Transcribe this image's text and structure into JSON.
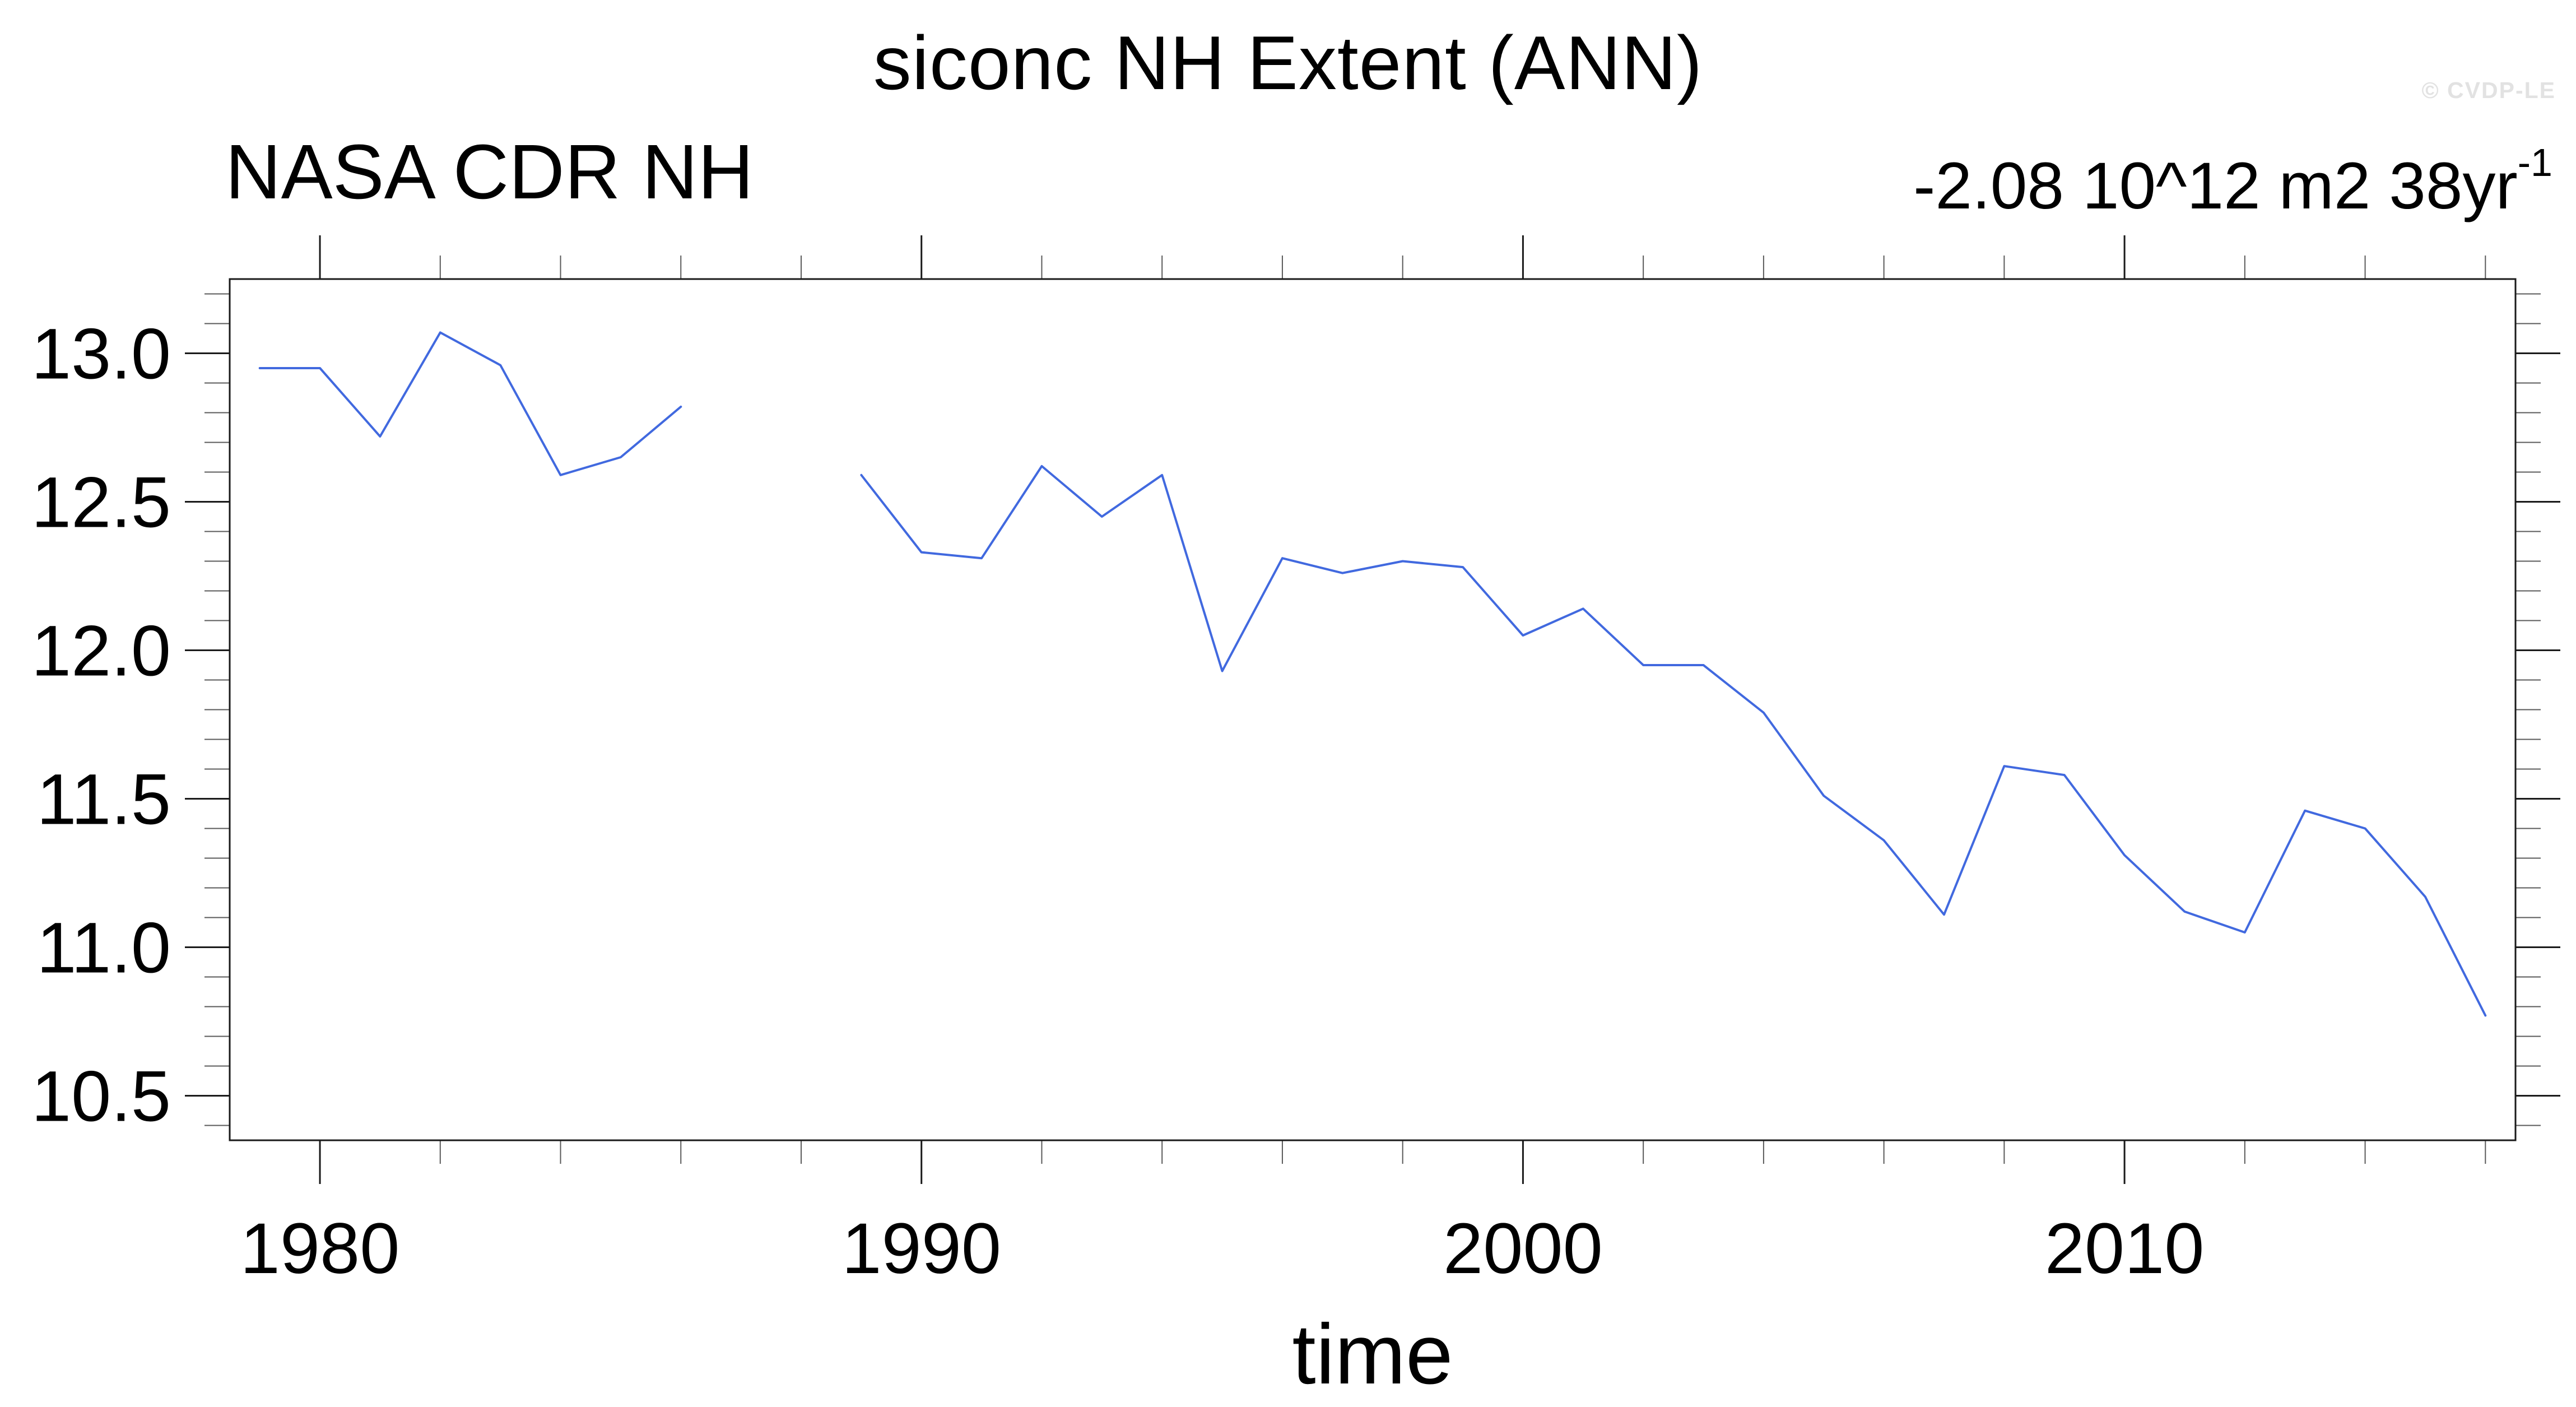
{
  "header": {
    "title": "siconc NH Extent (ANN)",
    "watermark": "© CVDP-LE",
    "dataset_label": "NASA CDR NH",
    "trend_label": "-2.08 10^12 m2 38yr",
    "trend_exponent": "-1"
  },
  "chart_data": {
    "type": "line",
    "title": "siconc NH Extent (ANN)",
    "subtitle_left": "NASA CDR NH",
    "subtitle_right": "-2.08 10^12 m2 38yr^-1",
    "xlabel": "time",
    "ylabel": "",
    "units": "10^12 m2",
    "grid": false,
    "legend": "none",
    "xlim": [
      1978.5,
      2016.5
    ],
    "ylim": [
      10.35,
      13.25
    ],
    "x_major_ticks": [
      1980,
      1990,
      2000,
      2010
    ],
    "x_tick_labels": [
      "1980",
      "1990",
      "2000",
      "2010"
    ],
    "x_minor_step_years": 2,
    "y_major_ticks": [
      10.5,
      11.0,
      11.5,
      12.0,
      12.5,
      13.0
    ],
    "y_tick_labels": [
      "10.5",
      "11.0",
      "11.5",
      "12.0",
      "12.5",
      "13.0"
    ],
    "y_minor_step": 0.1,
    "gap_years": [
      1987,
      1988
    ],
    "x": [
      1979,
      1980,
      1981,
      1982,
      1983,
      1984,
      1985,
      1986,
      1987,
      1988,
      1989,
      1990,
      1991,
      1992,
      1993,
      1994,
      1995,
      1996,
      1997,
      1998,
      1999,
      2000,
      2001,
      2002,
      2003,
      2004,
      2005,
      2006,
      2007,
      2008,
      2009,
      2010,
      2011,
      2012,
      2013,
      2014,
      2015,
      2016
    ],
    "series": [
      {
        "name": "NASA CDR NH",
        "color": "#4169df",
        "values": [
          12.95,
          12.95,
          12.72,
          13.07,
          12.96,
          12.59,
          12.65,
          12.82,
          null,
          null,
          12.59,
          12.33,
          12.31,
          12.62,
          12.45,
          12.59,
          11.93,
          12.31,
          12.26,
          12.3,
          12.28,
          12.05,
          12.14,
          11.95,
          11.95,
          11.79,
          11.51,
          11.36,
          11.11,
          11.61,
          11.58,
          11.31,
          11.12,
          11.05,
          11.46,
          11.4,
          11.17,
          10.77
        ]
      }
    ]
  },
  "style": {
    "frame_color": "#1a1a1a",
    "major_tick_color": "#1a1a1a",
    "minor_tick_color": "#5a5a5a",
    "watermark_color": "#e2e2e2"
  }
}
